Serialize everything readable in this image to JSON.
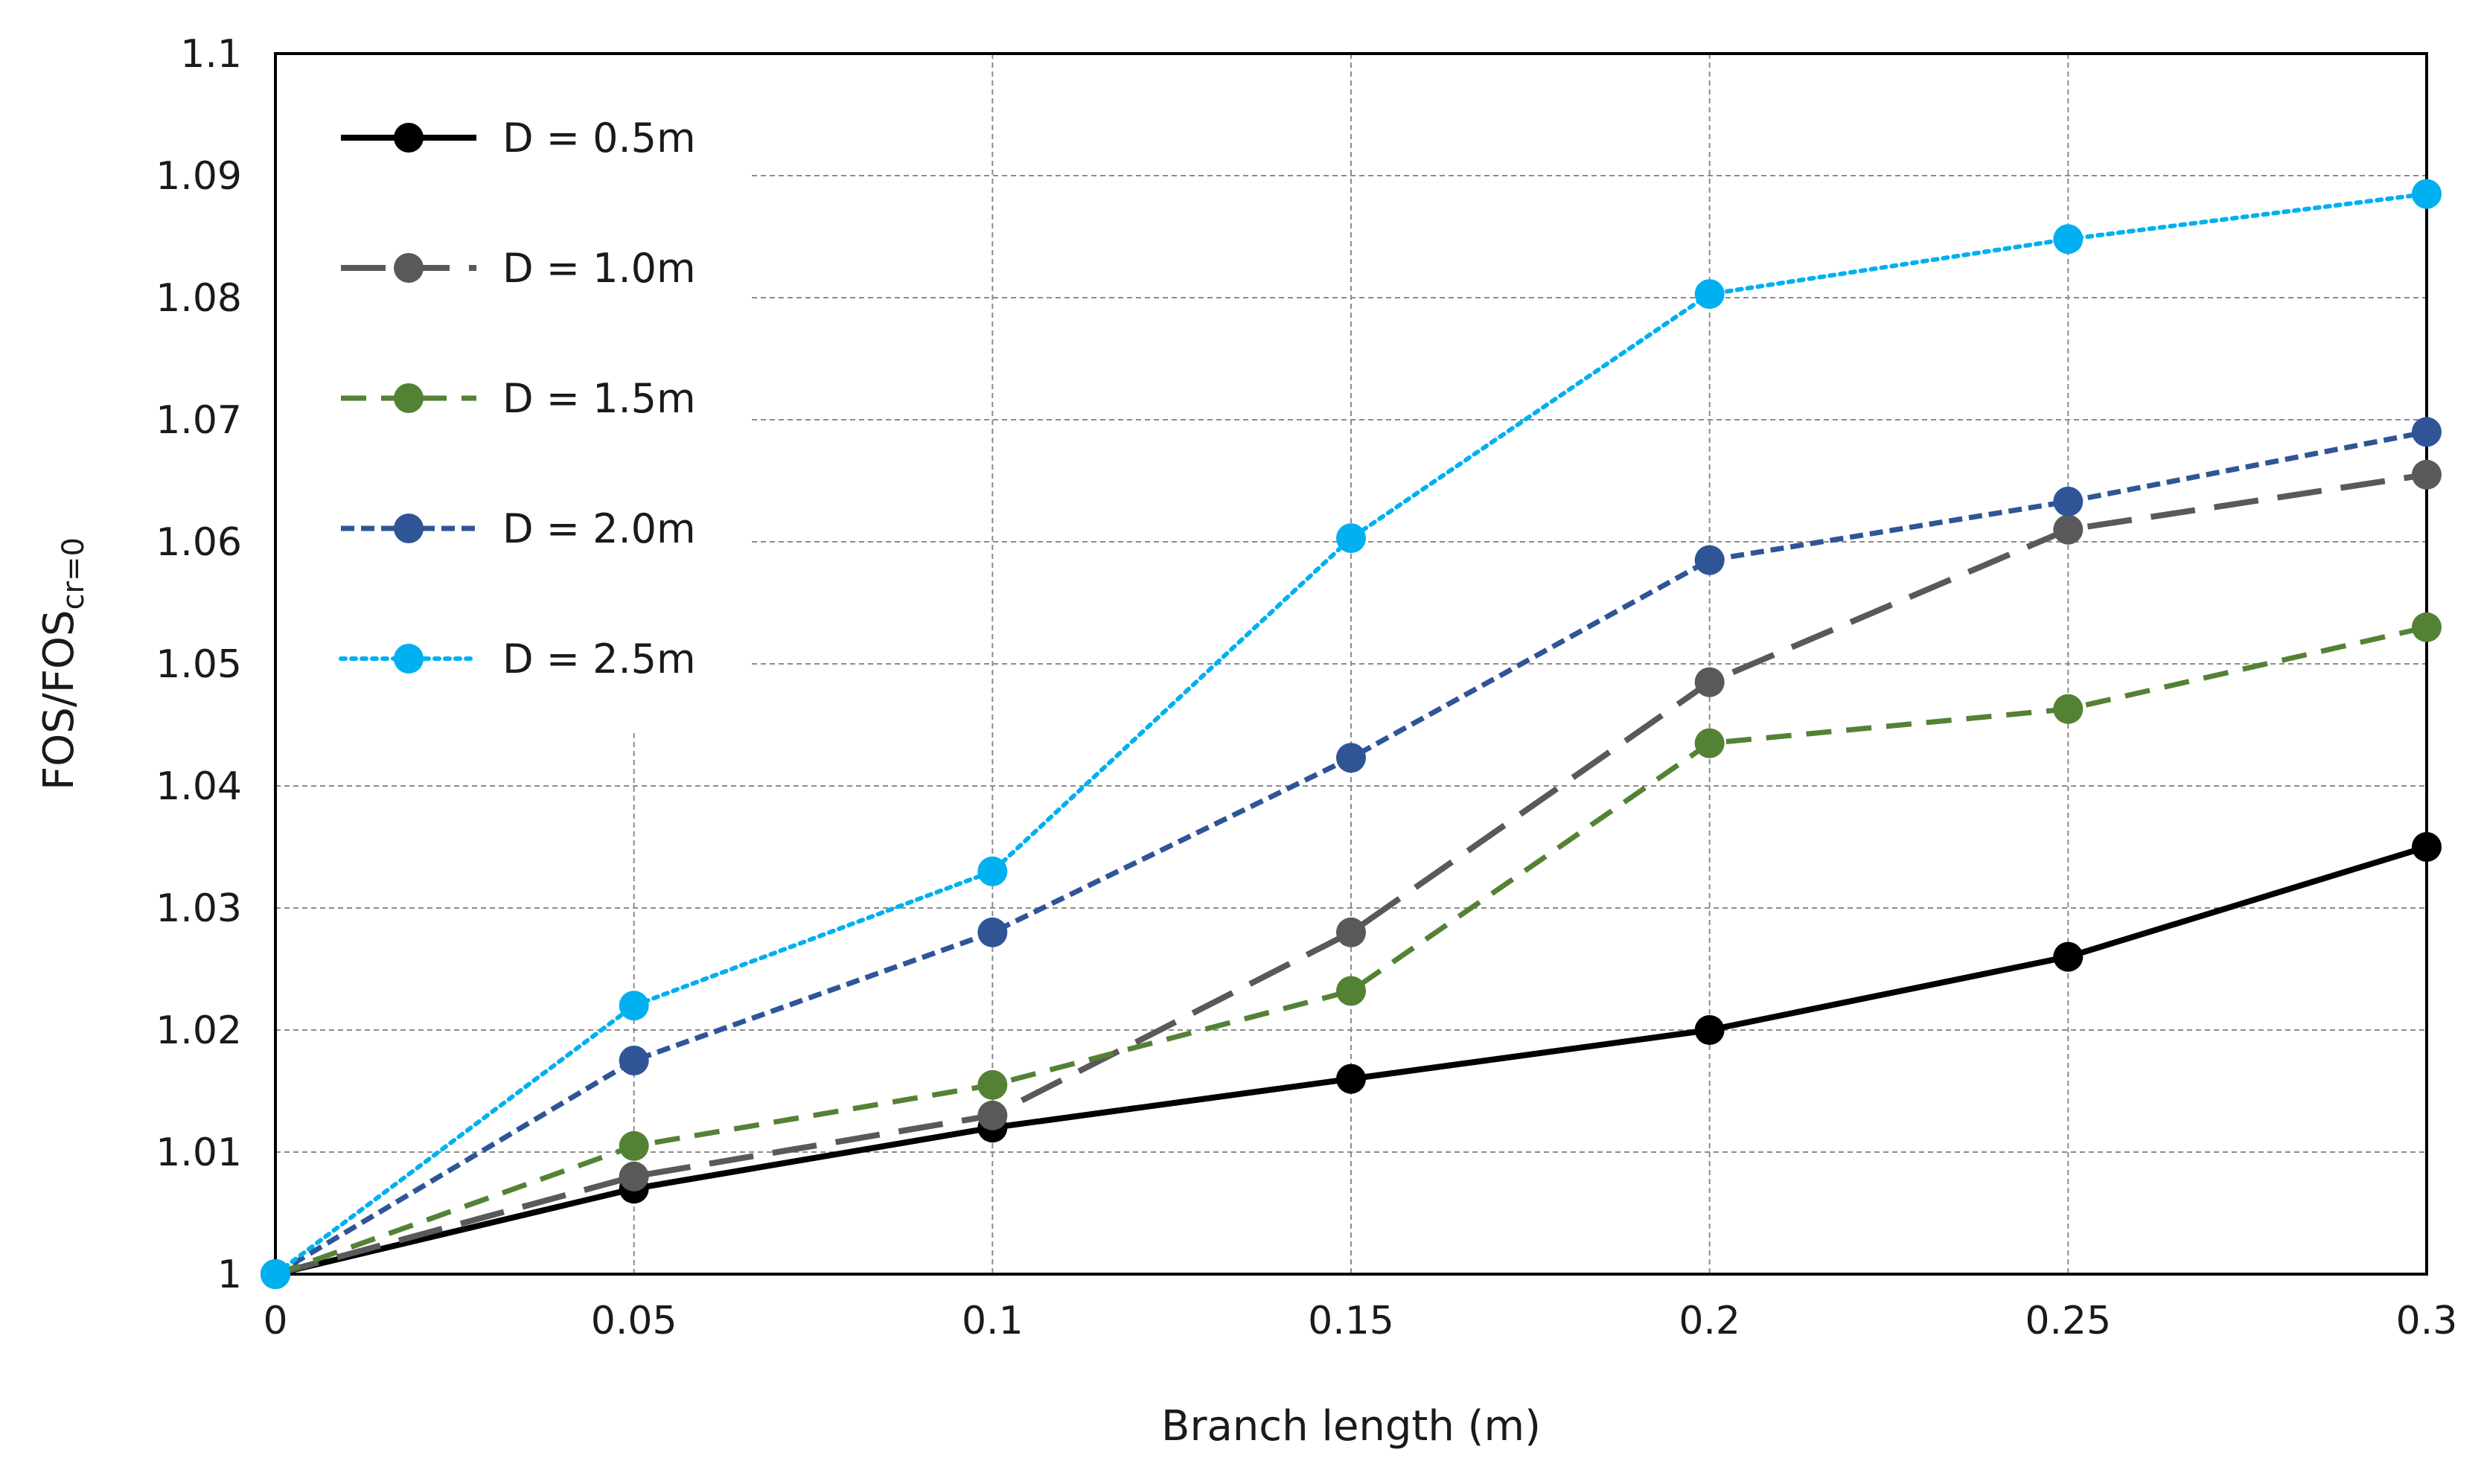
{
  "chart_data": {
    "type": "line",
    "title": "",
    "xlabel": "Branch length (m)",
    "ylabel_main": "FOS/FOS",
    "ylabel_sub": "cr=0",
    "x": [
      0,
      0.05,
      0.1,
      0.15,
      0.2,
      0.25,
      0.3
    ],
    "x_tick_labels": [
      "0",
      "0.05",
      "0.1",
      "0.15",
      "0.2",
      "0.25",
      "0.3"
    ],
    "y_tick_labels": [
      "1",
      "1.01",
      "1.02",
      "1.03",
      "1.04",
      "1.05",
      "1.06",
      "1.07",
      "1.08",
      "1.09",
      "1.1"
    ],
    "xlim": [
      0,
      0.3
    ],
    "ylim": [
      1,
      1.1
    ],
    "grid": true,
    "legend_position": "top-left",
    "series": [
      {
        "name": "D = 0.5m",
        "color": "#000000",
        "line_style": "solid",
        "values": [
          1.0,
          1.007,
          1.012,
          1.016,
          1.02,
          1.026,
          1.035
        ]
      },
      {
        "name": "D = 1.0m",
        "color": "#595959",
        "line_style": "long-dash",
        "values": [
          1.0,
          1.008,
          1.013,
          1.028,
          1.0485,
          1.061,
          1.0655
        ]
      },
      {
        "name": "D = 1.5m",
        "color": "#548235",
        "line_style": "dash",
        "values": [
          1.0,
          1.0105,
          1.0155,
          1.0232,
          1.0435,
          1.0463,
          1.053
        ]
      },
      {
        "name": "D = 2.0m",
        "color": "#2F5597",
        "line_style": "short-dash",
        "values": [
          1.0,
          1.0175,
          1.028,
          1.0423,
          1.0585,
          1.0633,
          1.069
        ]
      },
      {
        "name": "D = 2.5m",
        "color": "#00B0F0",
        "line_style": "dotted",
        "values": [
          1.0,
          1.022,
          1.033,
          1.0603,
          1.0803,
          1.0848,
          1.0885
        ]
      }
    ]
  }
}
